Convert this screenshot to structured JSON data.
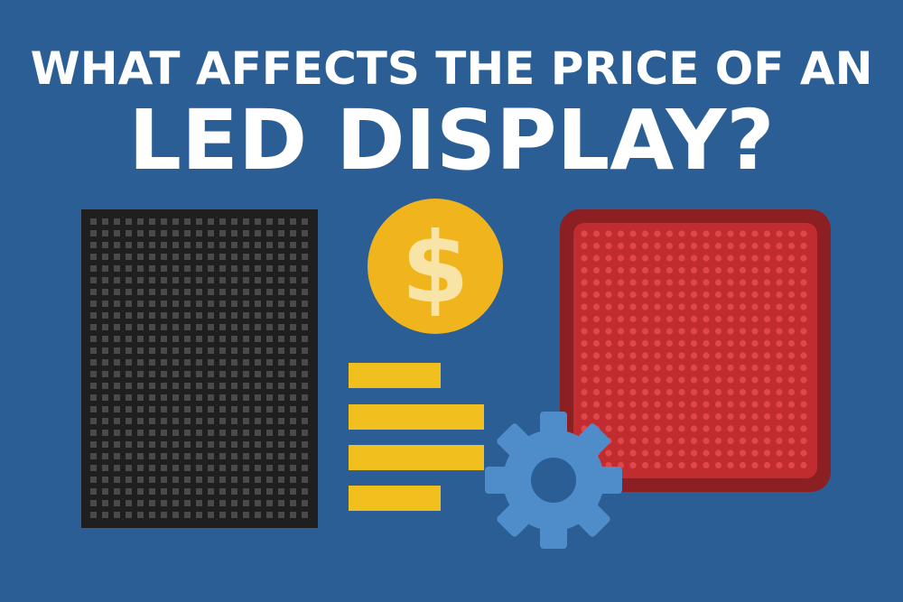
{
  "header": {
    "title_line1": "WHAT AFFECTS THE PRICE OF AN",
    "title_line2": "LED DISPLAY?"
  },
  "coin": {
    "symbol": "$"
  }
}
